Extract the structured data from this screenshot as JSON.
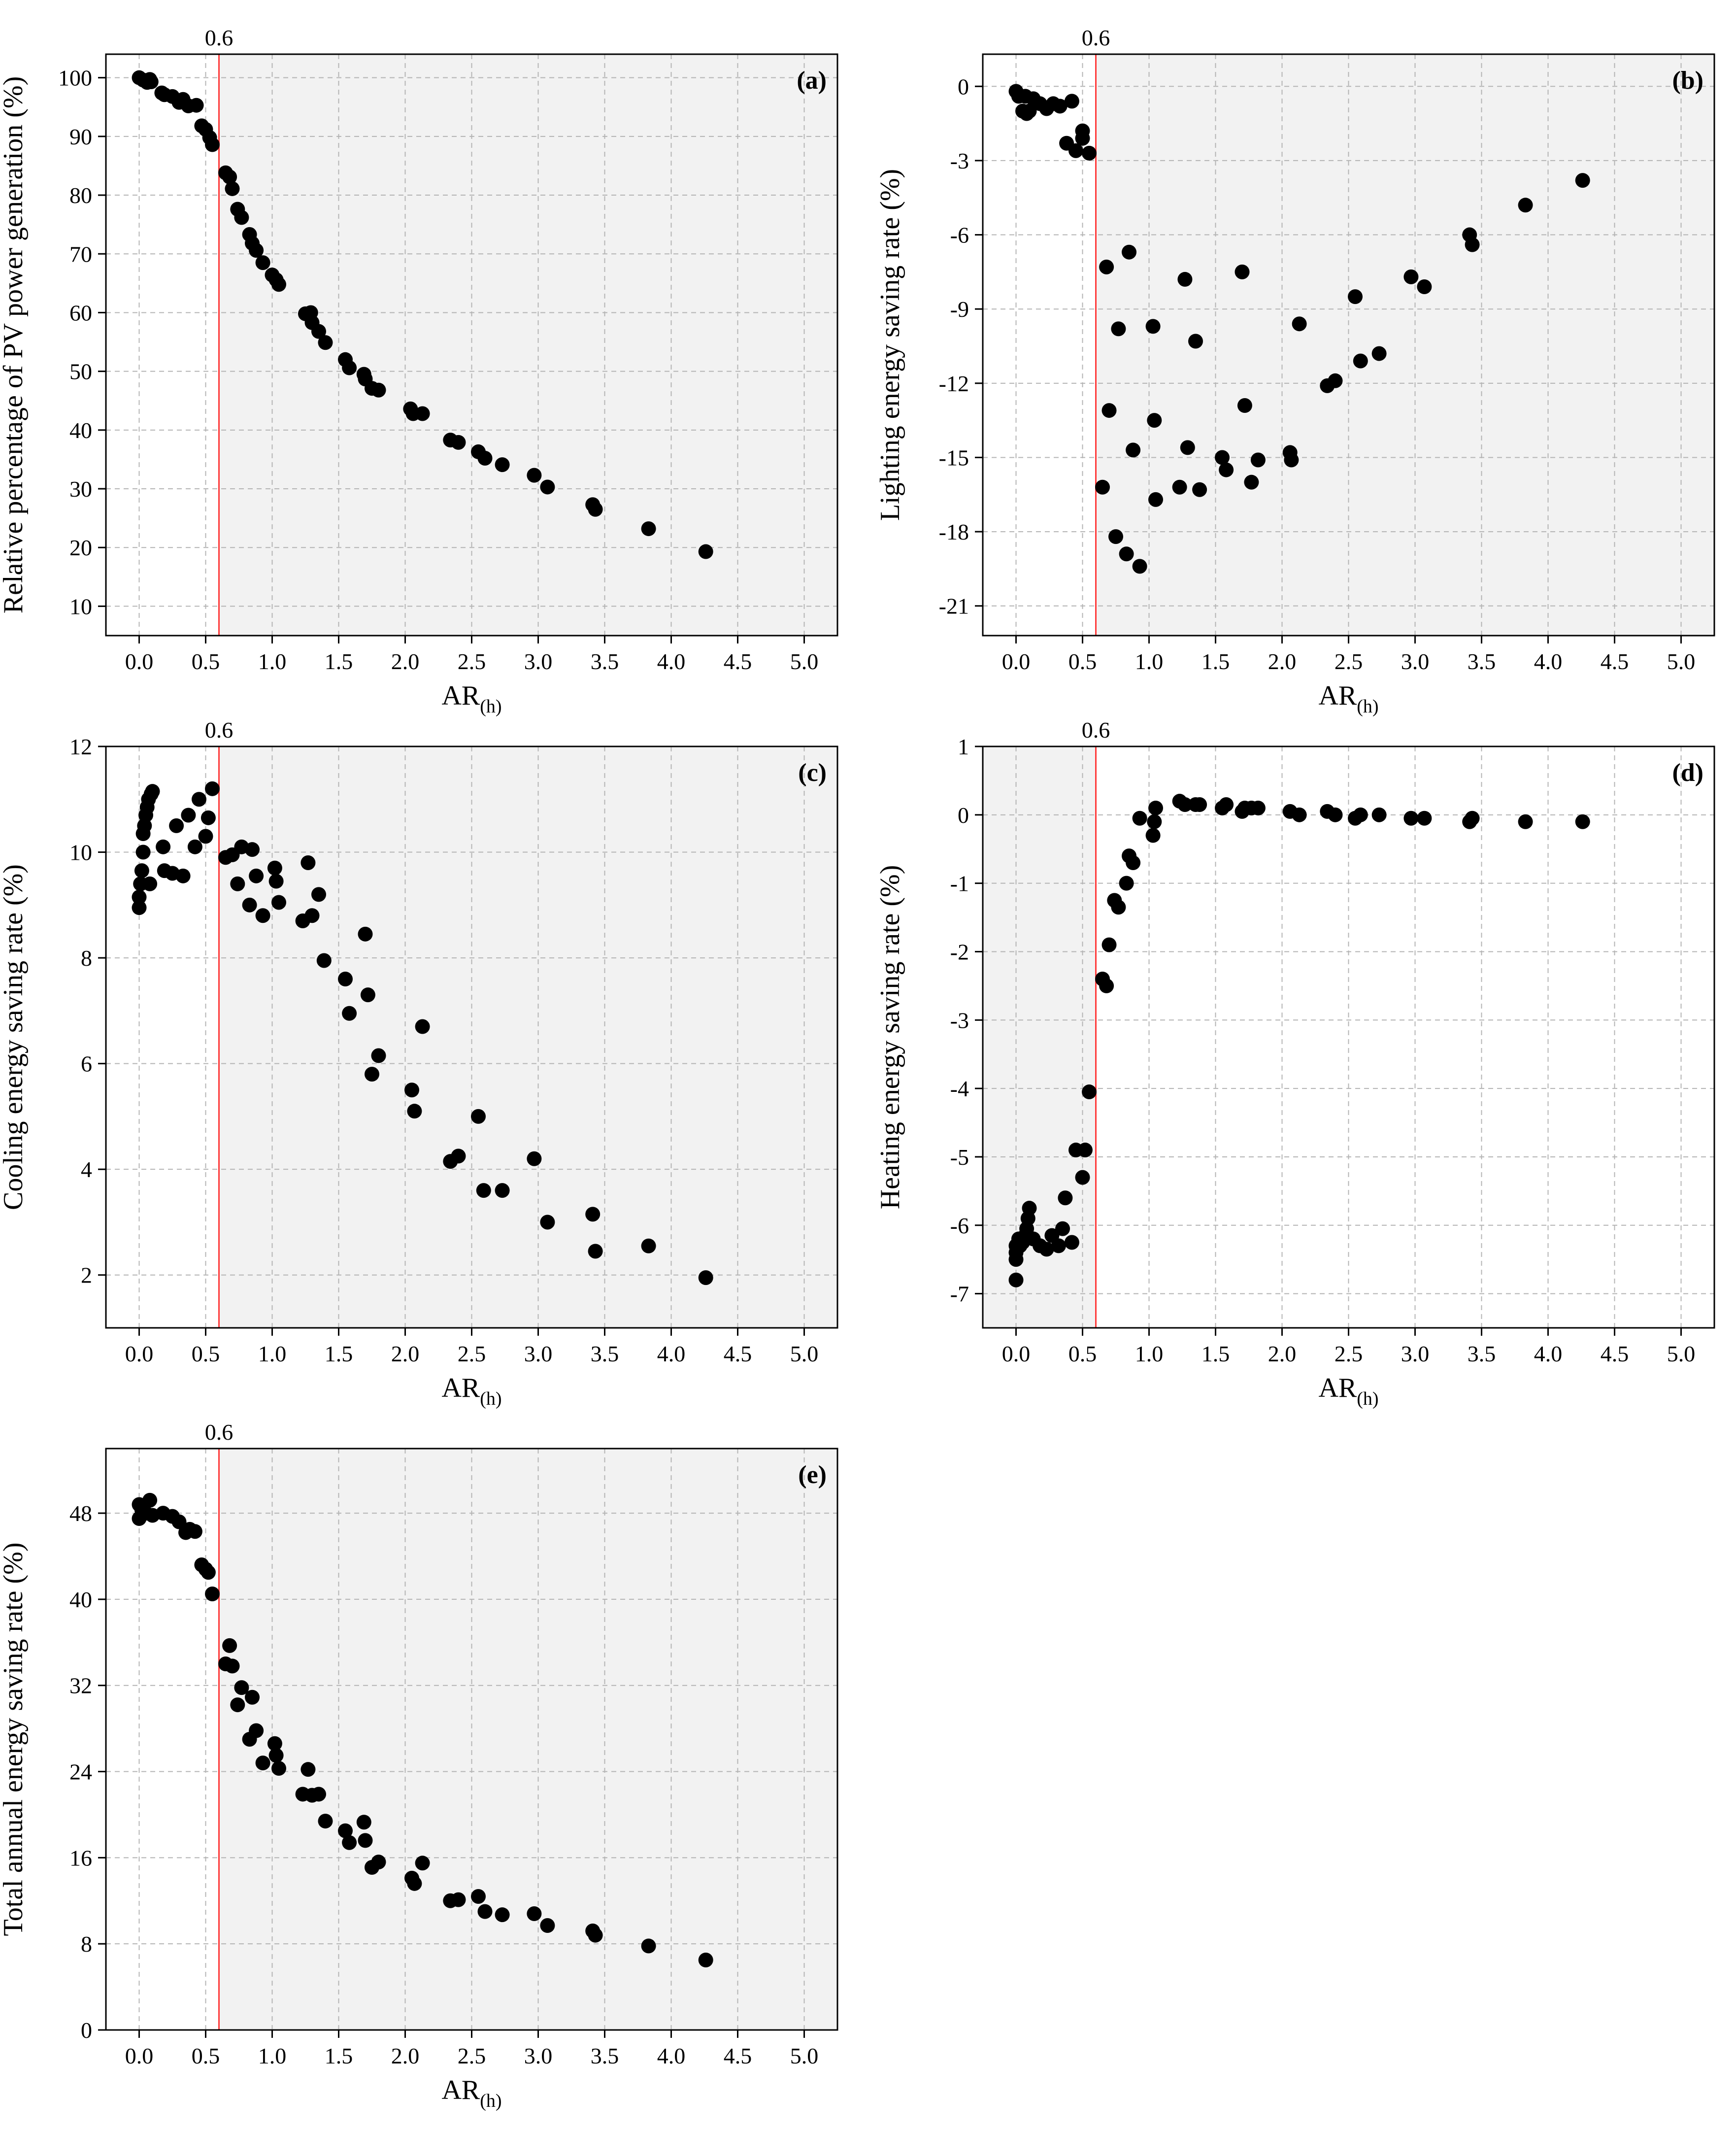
{
  "chart_data": [
    {
      "panel": "(a)",
      "type": "scatter",
      "xlabel": "AR",
      "xlabel_sub": "(h)",
      "ylabel": "Relative percentage of PV power generation (%)",
      "xlim": [
        -0.25,
        5.25
      ],
      "ylim": [
        5,
        104
      ],
      "xticks": [
        0.0,
        0.5,
        1.0,
        1.5,
        2.0,
        2.5,
        3.0,
        3.5,
        4.0,
        4.5,
        5.0
      ],
      "xtick_labels": [
        "0.0",
        "0.5",
        "1.0",
        "1.5",
        "2.0",
        "2.5",
        "3.0",
        "3.5",
        "4.0",
        "4.5",
        "5.0"
      ],
      "yticks": [
        10,
        20,
        30,
        40,
        50,
        60,
        70,
        80,
        90,
        100
      ],
      "ytick_labels": [
        "10",
        "20",
        "30",
        "40",
        "50",
        "60",
        "70",
        "80",
        "90",
        "100"
      ],
      "threshold": {
        "x": 0.6,
        "label": "0.6"
      },
      "shade": "right",
      "grid": true,
      "x": [
        0.0,
        0.03,
        0.06,
        0.08,
        0.09,
        0.17,
        0.19,
        0.25,
        0.3,
        0.33,
        0.37,
        0.43,
        0.47,
        0.5,
        0.53,
        0.55,
        0.65,
        0.68,
        0.7,
        0.74,
        0.77,
        0.83,
        0.85,
        0.88,
        0.93,
        1.0,
        1.03,
        1.05,
        1.25,
        1.29,
        1.3,
        1.35,
        1.4,
        1.55,
        1.58,
        1.69,
        1.7,
        1.75,
        1.8,
        2.04,
        2.06,
        2.13,
        2.34,
        2.4,
        2.55,
        2.6,
        2.73,
        2.97,
        3.07,
        3.41,
        3.43,
        3.83,
        4.26
      ],
      "y": [
        100,
        99.6,
        99.2,
        99.7,
        99.3,
        97.4,
        97.1,
        96.8,
        95.8,
        96.3,
        95.2,
        95.3,
        91.8,
        91.2,
        89.8,
        88.6,
        83.8,
        83.1,
        81.1,
        77.6,
        76.2,
        73.3,
        71.8,
        70.6,
        68.5,
        66.4,
        65.6,
        64.8,
        59.8,
        60,
        58.3,
        56.8,
        54.9,
        52,
        50.6,
        49.5,
        48.7,
        47.1,
        46.8,
        43.6,
        42.8,
        42.8,
        38.3,
        37.9,
        36.3,
        35.2,
        34.1,
        32.3,
        30.3,
        27.3,
        26.5,
        23.2,
        19.3
      ]
    },
    {
      "panel": "(b)",
      "type": "scatter",
      "xlabel": "AR",
      "xlabel_sub": "(h)",
      "ylabel": "Lighting energy saving rate (%)",
      "xlim": [
        -0.25,
        5.25
      ],
      "ylim": [
        -22.2,
        1.3
      ],
      "xticks": [
        0.0,
        0.5,
        1.0,
        1.5,
        2.0,
        2.5,
        3.0,
        3.5,
        4.0,
        4.5,
        5.0
      ],
      "xtick_labels": [
        "0.0",
        "0.5",
        "1.0",
        "1.5",
        "2.0",
        "2.5",
        "3.0",
        "3.5",
        "4.0",
        "4.5",
        "5.0"
      ],
      "yticks": [
        0,
        -3,
        -6,
        -9,
        -12,
        -15,
        -18,
        -21
      ],
      "ytick_labels": [
        "0",
        "-3",
        "-6",
        "-9",
        "-12",
        "-15",
        "-18",
        "-21"
      ],
      "threshold": {
        "x": 0.6,
        "label": "0.6"
      },
      "shade": "right",
      "grid": true,
      "x": [
        0.0,
        0.02,
        0.05,
        0.07,
        0.08,
        0.1,
        0.13,
        0.18,
        0.23,
        0.28,
        0.33,
        0.38,
        0.42,
        0.45,
        0.5,
        0.5,
        0.55,
        0.65,
        0.68,
        0.7,
        0.75,
        0.77,
        0.83,
        0.85,
        0.88,
        0.93,
        1.03,
        1.04,
        1.05,
        1.23,
        1.27,
        1.29,
        1.35,
        1.38,
        1.55,
        1.58,
        1.7,
        1.72,
        1.77,
        1.82,
        2.06,
        2.07,
        2.13,
        2.34,
        2.4,
        2.55,
        2.59,
        2.73,
        2.97,
        3.07,
        3.41,
        3.43,
        3.83,
        4.26
      ],
      "y": [
        -0.2,
        -0.4,
        -1.0,
        -0.4,
        -1.1,
        -1.0,
        -0.5,
        -0.7,
        -0.9,
        -0.7,
        -0.8,
        -2.3,
        -0.6,
        -2.6,
        -1.8,
        -2.1,
        -2.7,
        -16.2,
        -7.3,
        -13.1,
        -18.2,
        -9.8,
        -18.9,
        -6.7,
        -14.7,
        -19.4,
        -9.7,
        -13.5,
        -16.7,
        -16.2,
        -7.8,
        -14.6,
        -10.3,
        -16.3,
        -15.0,
        -15.5,
        -7.5,
        -12.9,
        -16.0,
        -15.1,
        -14.8,
        -15.1,
        -9.6,
        -12.1,
        -11.9,
        -8.5,
        -11.1,
        -10.8,
        -7.7,
        -8.1,
        -6.0,
        -6.4,
        -4.8,
        -3.8
      ]
    },
    {
      "panel": "(c)",
      "type": "scatter",
      "xlabel": "AR",
      "xlabel_sub": "(h)",
      "ylabel": "Cooling energy saving rate (%)",
      "xlim": [
        -0.25,
        5.25
      ],
      "ylim": [
        1,
        12
      ],
      "xticks": [
        0.0,
        0.5,
        1.0,
        1.5,
        2.0,
        2.5,
        3.0,
        3.5,
        4.0,
        4.5,
        5.0
      ],
      "xtick_labels": [
        "0.0",
        "0.5",
        "1.0",
        "1.5",
        "2.0",
        "2.5",
        "3.0",
        "3.5",
        "4.0",
        "4.5",
        "5.0"
      ],
      "yticks": [
        2,
        4,
        6,
        8,
        10,
        12
      ],
      "ytick_labels": [
        "2",
        "4",
        "6",
        "8",
        "10",
        "12"
      ],
      "threshold": {
        "x": 0.6,
        "label": "0.6"
      },
      "shade": "right",
      "grid": true,
      "x": [
        0.0,
        0.0,
        0.01,
        0.02,
        0.03,
        0.03,
        0.04,
        0.05,
        0.06,
        0.07,
        0.08,
        0.09,
        0.1,
        0.18,
        0.19,
        0.25,
        0.28,
        0.33,
        0.37,
        0.42,
        0.45,
        0.5,
        0.52,
        0.55,
        0.65,
        0.7,
        0.74,
        0.77,
        0.83,
        0.85,
        0.88,
        0.93,
        1.02,
        1.03,
        1.05,
        1.23,
        1.27,
        1.3,
        1.35,
        1.39,
        1.55,
        1.58,
        1.7,
        1.72,
        1.75,
        1.8,
        2.05,
        2.07,
        2.13,
        2.34,
        2.4,
        2.55,
        2.59,
        2.73,
        2.97,
        3.07,
        3.41,
        3.43,
        3.83,
        4.26
      ],
      "y": [
        8.95,
        9.15,
        9.4,
        9.65,
        10.0,
        10.35,
        10.5,
        10.7,
        10.85,
        11.0,
        9.4,
        11.1,
        11.15,
        10.1,
        9.65,
        9.6,
        10.5,
        9.55,
        10.7,
        10.1,
        11.0,
        10.3,
        10.65,
        11.2,
        9.9,
        9.95,
        9.4,
        10.1,
        9.0,
        10.05,
        9.55,
        8.8,
        9.7,
        9.45,
        9.05,
        8.7,
        9.8,
        8.8,
        9.2,
        7.95,
        7.6,
        6.95,
        8.45,
        7.3,
        5.8,
        6.15,
        5.5,
        5.1,
        6.7,
        4.15,
        4.25,
        5.0,
        3.6,
        3.6,
        4.2,
        3.0,
        3.15,
        2.45,
        2.55,
        1.95
      ]
    },
    {
      "panel": "(d)",
      "type": "scatter",
      "xlabel": "AR",
      "xlabel_sub": "(h)",
      "ylabel": "Heating energy saving rate (%)",
      "xlim": [
        -0.25,
        5.25
      ],
      "ylim": [
        -7.5,
        1
      ],
      "xticks": [
        0.0,
        0.5,
        1.0,
        1.5,
        2.0,
        2.5,
        3.0,
        3.5,
        4.0,
        4.5,
        5.0
      ],
      "xtick_labels": [
        "0.0",
        "0.5",
        "1.0",
        "1.5",
        "2.0",
        "2.5",
        "3.0",
        "3.5",
        "4.0",
        "4.5",
        "5.0"
      ],
      "yticks": [
        1,
        0,
        -1,
        -2,
        -3,
        -4,
        -5,
        -6,
        -7
      ],
      "ytick_labels": [
        "1",
        "0",
        "-1",
        "-2",
        "-3",
        "-4",
        "-5",
        "-6",
        "-7"
      ],
      "threshold": {
        "x": 0.6,
        "label": "0.6"
      },
      "shade": "left",
      "grid": true,
      "x": [
        0.0,
        0.0,
        0.0,
        0.0,
        0.02,
        0.03,
        0.05,
        0.07,
        0.08,
        0.09,
        0.1,
        0.13,
        0.18,
        0.23,
        0.27,
        0.32,
        0.35,
        0.37,
        0.42,
        0.45,
        0.5,
        0.52,
        0.55,
        0.65,
        0.68,
        0.7,
        0.74,
        0.77,
        0.83,
        0.85,
        0.88,
        0.93,
        1.03,
        1.04,
        1.05,
        1.23,
        1.27,
        1.35,
        1.38,
        1.55,
        1.58,
        1.7,
        1.72,
        1.77,
        1.82,
        2.06,
        2.13,
        2.34,
        2.4,
        2.55,
        2.59,
        2.73,
        2.97,
        3.07,
        3.41,
        3.43,
        3.83,
        4.26
      ],
      "y": [
        -6.8,
        -6.5,
        -6.4,
        -6.3,
        -6.2,
        -6.3,
        -6.25,
        -6.15,
        -6.05,
        -5.9,
        -5.75,
        -6.2,
        -6.3,
        -6.35,
        -6.15,
        -6.3,
        -6.05,
        -5.6,
        -6.25,
        -4.9,
        -5.3,
        -4.9,
        -4.05,
        -2.4,
        -2.5,
        -1.9,
        -1.25,
        -1.35,
        -1.0,
        -0.6,
        -0.7,
        -0.05,
        -0.3,
        -0.1,
        0.1,
        0.2,
        0.15,
        0.15,
        0.15,
        0.1,
        0.15,
        0.05,
        0.1,
        0.1,
        0.1,
        0.05,
        0.0,
        0.05,
        0.0,
        -0.05,
        0.0,
        0.0,
        -0.05,
        -0.05,
        -0.1,
        -0.05,
        -0.1,
        -0.1
      ]
    },
    {
      "panel": "(e)",
      "type": "scatter",
      "xlabel": "AR",
      "xlabel_sub": "(h)",
      "ylabel": "Total annual energy saving rate (%)",
      "xlim": [
        -0.25,
        5.25
      ],
      "ylim": [
        0,
        54
      ],
      "xticks": [
        0.0,
        0.5,
        1.0,
        1.5,
        2.0,
        2.5,
        3.0,
        3.5,
        4.0,
        4.5,
        5.0
      ],
      "xtick_labels": [
        "0.0",
        "0.5",
        "1.0",
        "1.5",
        "2.0",
        "2.5",
        "3.0",
        "3.5",
        "4.0",
        "4.5",
        "5.0"
      ],
      "yticks": [
        0,
        8,
        16,
        24,
        32,
        40,
        48
      ],
      "ytick_labels": [
        "0",
        "8",
        "16",
        "24",
        "32",
        "40",
        "48"
      ],
      "threshold": {
        "x": 0.6,
        "label": "0.6"
      },
      "shade": "right",
      "grid": true,
      "x": [
        0.0,
        0.0,
        0.02,
        0.05,
        0.08,
        0.1,
        0.18,
        0.25,
        0.3,
        0.35,
        0.38,
        0.42,
        0.47,
        0.5,
        0.52,
        0.55,
        0.65,
        0.68,
        0.7,
        0.74,
        0.77,
        0.83,
        0.85,
        0.88,
        0.93,
        1.02,
        1.03,
        1.05,
        1.23,
        1.27,
        1.3,
        1.35,
        1.4,
        1.55,
        1.58,
        1.69,
        1.7,
        1.75,
        1.8,
        2.05,
        2.07,
        2.13,
        2.34,
        2.4,
        2.55,
        2.6,
        2.73,
        2.97,
        3.07,
        3.41,
        3.43,
        3.83,
        4.26
      ],
      "y": [
        47.5,
        48.8,
        48.3,
        48.0,
        49.2,
        47.8,
        48.0,
        47.7,
        47.2,
        46.2,
        46.5,
        46.3,
        43.2,
        42.8,
        42.5,
        40.5,
        34.0,
        35.7,
        33.8,
        30.2,
        31.8,
        27.0,
        30.9,
        27.8,
        24.8,
        26.6,
        25.5,
        24.3,
        21.9,
        24.2,
        21.8,
        21.9,
        19.4,
        18.5,
        17.4,
        19.3,
        17.6,
        15.1,
        15.6,
        14.1,
        13.6,
        15.5,
        12.0,
        12.1,
        12.4,
        11.0,
        10.7,
        10.8,
        9.7,
        9.2,
        8.8,
        7.8,
        6.5
      ]
    }
  ],
  "style": {
    "shade_color": "#f2f2f2",
    "threshold_color": "#ff3b3b",
    "point_color": "#000000",
    "grid_color": "#b4b4b4"
  }
}
